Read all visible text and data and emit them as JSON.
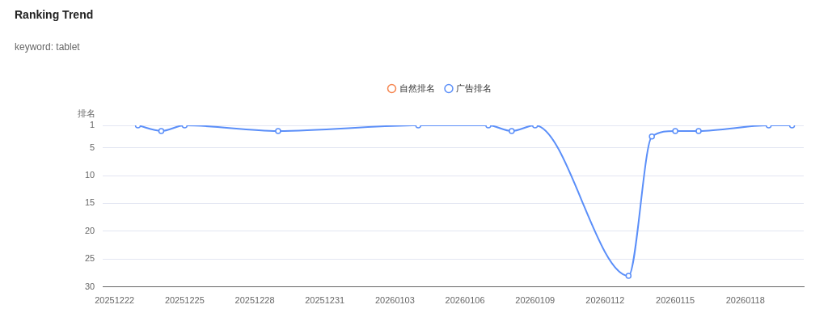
{
  "chart_data": {
    "type": "line",
    "title": "Ranking Trend",
    "subtitle": "keyword: tablet",
    "ylabel": "排名",
    "categories": [
      "20251222",
      null,
      null,
      "20251225",
      null,
      null,
      "20251228",
      null,
      null,
      "20251231",
      null,
      null,
      "20260103",
      null,
      null,
      "20260106",
      null,
      null,
      "20260109",
      null,
      null,
      "20260112",
      null,
      null,
      "20260115",
      null,
      null,
      "20260118",
      null,
      null
    ],
    "series": [
      {
        "name": "自然排名",
        "color": "#f5854f",
        "values": [
          null,
          null,
          null,
          null,
          null,
          null,
          null,
          null,
          null,
          null,
          null,
          null,
          null,
          null,
          null,
          null,
          null,
          null,
          null,
          null,
          null,
          null,
          null,
          null,
          null,
          null,
          null,
          null,
          null,
          null
        ]
      },
      {
        "name": "广告排名",
        "color": "#5b8ff9",
        "values": [
          null,
          1,
          2,
          1,
          null,
          null,
          null,
          2,
          null,
          null,
          null,
          null,
          null,
          1,
          null,
          null,
          1,
          2,
          1,
          null,
          null,
          null,
          28,
          3,
          2,
          2,
          null,
          null,
          1,
          1
        ]
      }
    ],
    "ylim": [
      30,
      1
    ],
    "yticks": [
      1,
      5,
      10,
      15,
      20,
      25,
      30
    ],
    "grid": "y",
    "legend": "top",
    "marker": "circle",
    "line_style": "solid"
  }
}
